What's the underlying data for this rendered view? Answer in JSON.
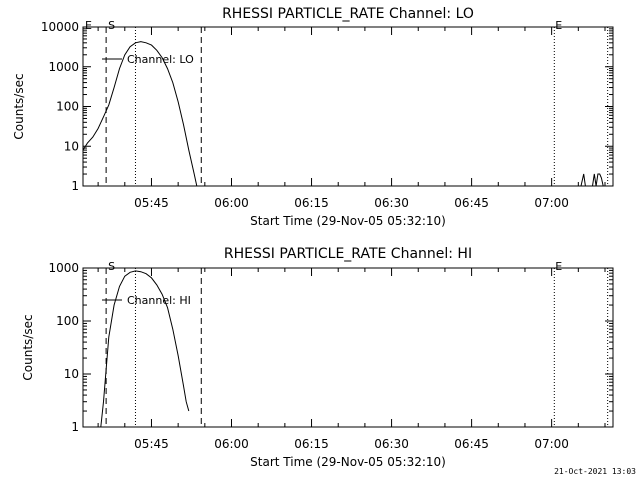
{
  "footer": {
    "timestamp": "21-Oct-2021 13:03"
  },
  "chart_data": [
    {
      "type": "line",
      "title": "RHESSI PARTICLE_RATE Channel: LO",
      "xlabel": "Start Time (29-Nov-05 05:32:10)",
      "ylabel": "Counts/sec",
      "y_scale": "log",
      "xlim": [
        "05:32:10",
        "07:11:30"
      ],
      "ylim": [
        1,
        10000
      ],
      "x_ticks": [
        "05:45",
        "06:00",
        "06:15",
        "06:30",
        "06:45",
        "07:00"
      ],
      "y_ticks": [
        "1",
        "10",
        "100",
        "1000",
        "10000"
      ],
      "grid": false,
      "legend": {
        "label": "Channel: LO",
        "placement": "top-left"
      },
      "markers": {
        "left": "E",
        "start": "S",
        "end": "E"
      },
      "vertical_lines": [
        {
          "style": "dashed",
          "time": "05:36:30"
        },
        {
          "style": "dotted",
          "time": "05:42:00"
        },
        {
          "style": "dashed",
          "time": "05:54:20"
        },
        {
          "style": "dotted",
          "time": "07:00:30"
        },
        {
          "style": "dotted",
          "time": "07:10:30"
        }
      ],
      "series": [
        {
          "name": "Channel: LO",
          "x": [
            "05:32:10",
            "05:33:00",
            "05:34:00",
            "05:35:00",
            "05:36:00",
            "05:37:00",
            "05:38:00",
            "05:39:00",
            "05:40:00",
            "05:41:00",
            "05:42:00",
            "05:43:00",
            "05:44:00",
            "05:45:00",
            "05:46:00",
            "05:47:00",
            "05:48:00",
            "05:49:00",
            "05:50:00",
            "05:51:00",
            "05:52:00",
            "05:53:00",
            "05:53:30"
          ],
          "y": [
            8,
            12,
            17,
            28,
            55,
            110,
            300,
            900,
            2000,
            3200,
            4000,
            4300,
            4000,
            3500,
            2600,
            1700,
            900,
            400,
            130,
            35,
            8,
            2,
            1
          ]
        },
        {
          "name": "Channel: LO",
          "x": [
            "07:05:30",
            "07:06:00",
            "07:06:20"
          ],
          "y": [
            1,
            2,
            1
          ]
        },
        {
          "name": "Channel: LO",
          "x": [
            "07:07:40",
            "07:08:00",
            "07:08:20",
            "07:08:40",
            "07:09:00",
            "07:09:20",
            "07:09:40"
          ],
          "y": [
            1,
            2,
            1,
            2,
            2,
            1.6,
            1
          ]
        }
      ]
    },
    {
      "type": "line",
      "title": "RHESSI PARTICLE_RATE Channel: HI",
      "xlabel": "Start Time (29-Nov-05 05:32:10)",
      "ylabel": "Counts/sec",
      "y_scale": "log",
      "xlim": [
        "05:32:10",
        "07:11:30"
      ],
      "ylim": [
        1,
        1000
      ],
      "x_ticks": [
        "05:45",
        "06:00",
        "06:15",
        "06:30",
        "06:45",
        "07:00"
      ],
      "y_ticks": [
        "1",
        "10",
        "100",
        "1000"
      ],
      "grid": false,
      "legend": {
        "label": "Channel: HI",
        "placement": "top-left"
      },
      "markers": {
        "start": "S",
        "end": "E"
      },
      "vertical_lines": [
        {
          "style": "dashed",
          "time": "05:36:30"
        },
        {
          "style": "dotted",
          "time": "05:42:00"
        },
        {
          "style": "dashed",
          "time": "05:54:20"
        },
        {
          "style": "dotted",
          "time": "07:00:30"
        },
        {
          "style": "dotted",
          "time": "07:10:30"
        }
      ],
      "series": [
        {
          "name": "Channel: HI",
          "x": [
            "05:35:30",
            "05:36:00",
            "05:36:30",
            "05:37:00",
            "05:38:00",
            "05:39:00",
            "05:40:00",
            "05:41:00",
            "05:42:00",
            "05:43:00",
            "05:44:00",
            "05:45:00",
            "05:46:00",
            "05:47:00",
            "05:48:00",
            "05:49:00",
            "05:50:00",
            "05:51:00",
            "05:51:30",
            "05:52:00"
          ],
          "y": [
            1,
            3,
            12,
            50,
            200,
            450,
            700,
            830,
            880,
            850,
            780,
            650,
            480,
            320,
            180,
            70,
            22,
            6,
            3,
            2
          ]
        }
      ]
    }
  ]
}
